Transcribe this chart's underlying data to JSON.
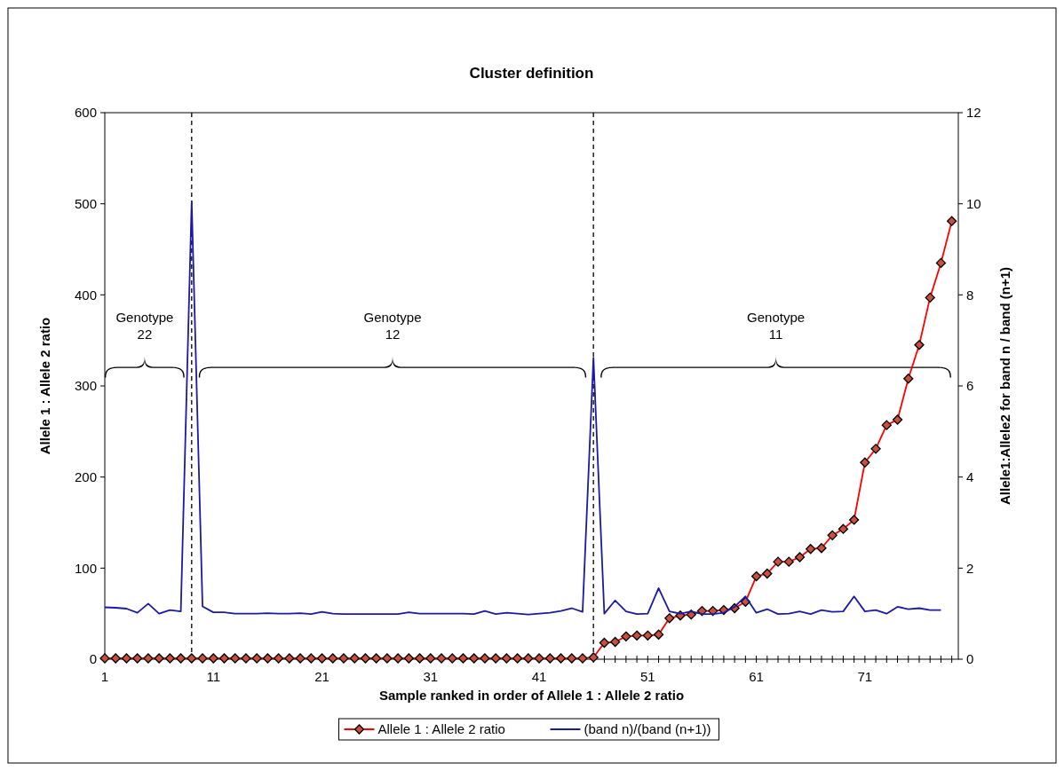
{
  "chart_data": {
    "type": "line",
    "title": "Cluster definition",
    "xlabel": "Sample ranked in order of Allele 1 : Allele 2 ratio",
    "ylabel": "Allele 1 : Allele 2 ratio",
    "y2label": "Allele1:Allele2 for band n / band (n+1)",
    "x": [
      1,
      2,
      3,
      4,
      5,
      6,
      7,
      8,
      9,
      10,
      11,
      12,
      13,
      14,
      15,
      16,
      17,
      18,
      19,
      20,
      21,
      22,
      23,
      24,
      25,
      26,
      27,
      28,
      29,
      30,
      31,
      32,
      33,
      34,
      35,
      36,
      37,
      38,
      39,
      40,
      41,
      42,
      43,
      44,
      45,
      46,
      47,
      48,
      49,
      50,
      51,
      52,
      53,
      54,
      55,
      56,
      57,
      58,
      59,
      60,
      61,
      62,
      63,
      64,
      65,
      66,
      67,
      68,
      69,
      70,
      71,
      72,
      73,
      74,
      75,
      76,
      77,
      78,
      79
    ],
    "series": [
      {
        "name": "Allele 1 : Allele 2 ratio",
        "color": "#ff0000",
        "marker": "diamond",
        "values": [
          1,
          1,
          1,
          1,
          1,
          1,
          1,
          1,
          1,
          1,
          1,
          1,
          1,
          1,
          1,
          1,
          1,
          1,
          1,
          1,
          1,
          1,
          1,
          1,
          1,
          1,
          1,
          1,
          1,
          1,
          1,
          1,
          1,
          1,
          1,
          1,
          1,
          1,
          1,
          1,
          1,
          1,
          1,
          1,
          1,
          2,
          18,
          19,
          25,
          26,
          26,
          27,
          45,
          48,
          49,
          53,
          53,
          54,
          56,
          63,
          91,
          94,
          107,
          107,
          112,
          121,
          122,
          136,
          143,
          153,
          216,
          231,
          257,
          263,
          308,
          345,
          397,
          435,
          481
        ]
      },
      {
        "name": "(band n)/(band (n+1))",
        "color": "#1a1aa6",
        "axis": "y2",
        "marker": "none",
        "values": [
          1.14,
          1.13,
          1.11,
          1.02,
          1.22,
          1.0,
          1.08,
          1.05,
          10.05,
          1.16,
          1.03,
          1.03,
          1.0,
          1.0,
          1.0,
          1.01,
          1.0,
          1.0,
          1.01,
          0.99,
          1.04,
          1.0,
          0.99,
          0.99,
          0.99,
          0.99,
          0.99,
          0.99,
          1.03,
          1.0,
          1.0,
          1.0,
          1.0,
          1.0,
          0.99,
          1.06,
          0.99,
          1.02,
          1.0,
          0.98,
          1.0,
          1.02,
          1.06,
          1.12,
          1.04,
          6.62,
          1.0,
          1.29,
          1.05,
          0.99,
          1.0,
          1.56,
          1.05,
          1.0,
          1.05,
          0.99,
          0.99,
          1.02,
          1.15,
          1.38,
          1.02,
          1.1,
          0.99,
          1.0,
          1.05,
          0.99,
          1.08,
          1.04,
          1.05,
          1.38,
          1.05,
          1.08,
          1.0,
          1.15,
          1.1,
          1.12,
          1.08,
          1.08,
          null
        ]
      }
    ],
    "xlim": [
      1,
      79.6
    ],
    "xticks": [
      1,
      {
        "value": 2,
        "label": null
      },
      {
        "value": 3,
        "label": null
      },
      {
        "value": 4,
        "label": null
      },
      {
        "value": 5,
        "label": null
      },
      {
        "value": 6,
        "label": null
      },
      {
        "value": 7,
        "label": null
      },
      {
        "value": 8,
        "label": null
      },
      {
        "value": 9,
        "label": null
      },
      {
        "value": 10,
        "label": null
      },
      11,
      {
        "value": 12,
        "label": null
      },
      {
        "value": 13,
        "label": null
      },
      {
        "value": 14,
        "label": null
      },
      {
        "value": 15,
        "label": null
      },
      {
        "value": 16,
        "label": null
      },
      {
        "value": 17,
        "label": null
      },
      {
        "value": 18,
        "label": null
      },
      {
        "value": 19,
        "label": null
      },
      {
        "value": 20,
        "label": null
      },
      21,
      {
        "value": 22,
        "label": null
      },
      {
        "value": 23,
        "label": null
      },
      {
        "value": 24,
        "label": null
      },
      {
        "value": 25,
        "label": null
      },
      {
        "value": 26,
        "label": null
      },
      {
        "value": 27,
        "label": null
      },
      {
        "value": 28,
        "label": null
      },
      {
        "value": 29,
        "label": null
      },
      {
        "value": 30,
        "label": null
      },
      31,
      {
        "value": 32,
        "label": null
      },
      {
        "value": 33,
        "label": null
      },
      {
        "value": 34,
        "label": null
      },
      {
        "value": 35,
        "label": null
      },
      {
        "value": 36,
        "label": null
      },
      {
        "value": 37,
        "label": null
      },
      {
        "value": 38,
        "label": null
      },
      {
        "value": 39,
        "label": null
      },
      {
        "value": 40,
        "label": null
      },
      41,
      {
        "value": 42,
        "label": null
      },
      {
        "value": 43,
        "label": null
      },
      {
        "value": 44,
        "label": null
      },
      {
        "value": 45,
        "label": null
      },
      {
        "value": 46,
        "label": null
      },
      {
        "value": 47,
        "label": null
      },
      {
        "value": 48,
        "label": null
      },
      {
        "value": 49,
        "label": null
      },
      {
        "value": 50,
        "label": null
      },
      51,
      {
        "value": 52,
        "label": null
      },
      {
        "value": 53,
        "label": null
      },
      {
        "value": 54,
        "label": null
      },
      {
        "value": 55,
        "label": null
      },
      {
        "value": 56,
        "label": null
      },
      {
        "value": 57,
        "label": null
      },
      {
        "value": 58,
        "label": null
      },
      {
        "value": 59,
        "label": null
      },
      {
        "value": 60,
        "label": null
      },
      61,
      {
        "value": 62,
        "label": null
      },
      {
        "value": 63,
        "label": null
      },
      {
        "value": 64,
        "label": null
      },
      {
        "value": 65,
        "label": null
      },
      {
        "value": 66,
        "label": null
      },
      {
        "value": 67,
        "label": null
      },
      {
        "value": 68,
        "label": null
      },
      {
        "value": 69,
        "label": null
      },
      {
        "value": 70,
        "label": null
      },
      71,
      {
        "value": 72,
        "label": null
      },
      {
        "value": 73,
        "label": null
      },
      {
        "value": 74,
        "label": null
      },
      {
        "value": 75,
        "label": null
      },
      {
        "value": 76,
        "label": null
      },
      {
        "value": 77,
        "label": null
      },
      {
        "value": 78,
        "label": null
      },
      {
        "value": 79,
        "label": null
      }
    ],
    "ylim": [
      0,
      600
    ],
    "yticks": [
      0,
      100,
      200,
      300,
      400,
      500,
      600
    ],
    "y2lim": [
      0,
      12
    ],
    "y2ticks": [
      0,
      2,
      4,
      6,
      8,
      10,
      12
    ],
    "ref_lines": [
      {
        "axis": "x",
        "value": 9,
        "color": "#000000",
        "line_style": "dashed"
      },
      {
        "axis": "x",
        "value": 46,
        "color": "#000000",
        "line_style": "dashed"
      }
    ],
    "annotations": [
      "Genotype 22",
      "Genotype 12",
      "Genotype 11"
    ],
    "grid": false,
    "legend": "bottom"
  }
}
